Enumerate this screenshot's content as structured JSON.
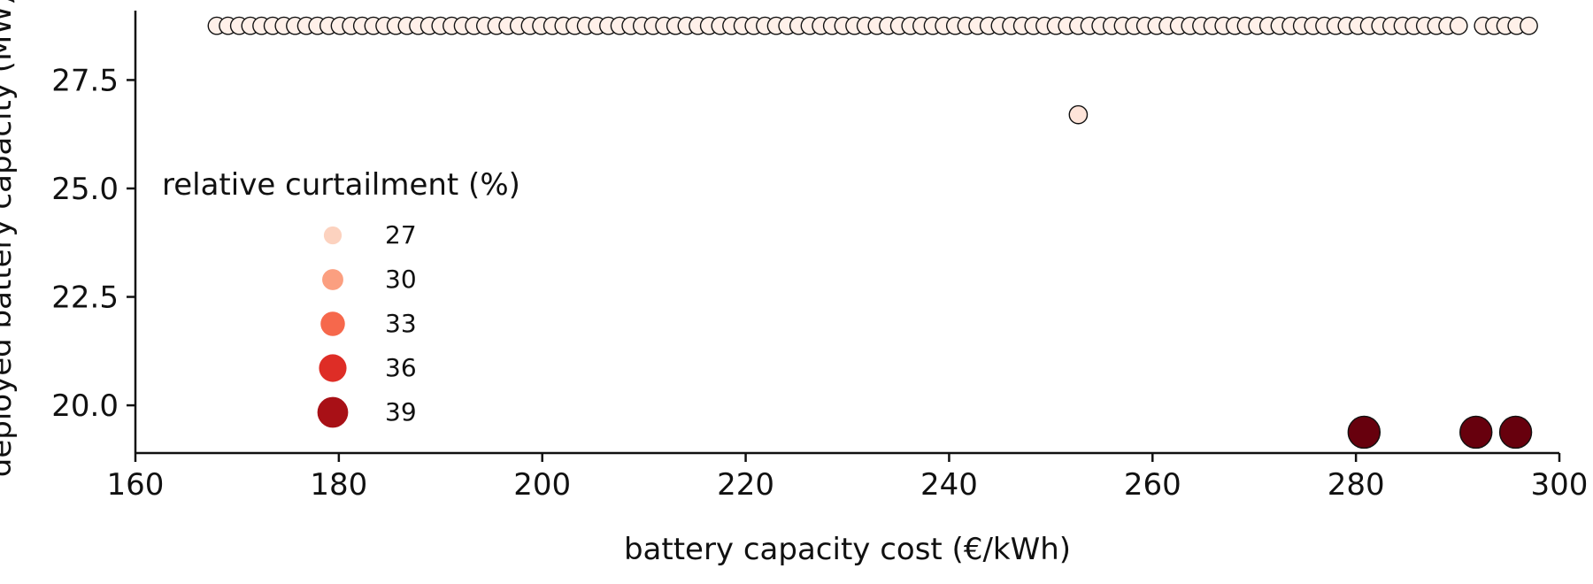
{
  "chart_data": {
    "type": "scatter",
    "xlabel": "battery capacity cost (€/kWh)",
    "ylabel": "deployed battery capacity (MW)",
    "xlim": [
      160,
      300
    ],
    "ylim": [
      18.9,
      29.1
    ],
    "x_ticks": [
      160,
      180,
      200,
      220,
      240,
      260,
      280,
      300
    ],
    "x_tick_labels": [
      "160",
      "180",
      "200",
      "220",
      "240",
      "260",
      "280",
      "300"
    ],
    "y_ticks": [
      20.0,
      22.5,
      25.0,
      27.5
    ],
    "y_tick_labels": [
      "20.0",
      "22.5",
      "25.0",
      "27.5"
    ],
    "grid": false,
    "legend": {
      "title": "relative curtailment (%)",
      "placement": "center-left",
      "entries": [
        {
          "label": "27",
          "value": 27,
          "color": "#fcd2bf"
        },
        {
          "label": "30",
          "value": 30,
          "color": "#fb9f80"
        },
        {
          "label": "33",
          "value": 33,
          "color": "#f6684c"
        },
        {
          "label": "36",
          "value": 36,
          "color": "#de2d26"
        },
        {
          "label": "39",
          "value": 39,
          "color": "#a81016"
        }
      ]
    },
    "hue_range": [
      26,
      40
    ],
    "color_scale": [
      "#fff5f0",
      "#fcbba1",
      "#fb6a4a",
      "#cb181d",
      "#67000d"
    ],
    "series": [
      {
        "y": 28.75,
        "curtailment": 26.3,
        "x": [
          168.0,
          169.1,
          170.2,
          171.3,
          172.4,
          173.5,
          174.6,
          175.7,
          176.8,
          177.9,
          179.0,
          180.1,
          181.2,
          182.3,
          183.4,
          184.5,
          185.6,
          186.7,
          187.8,
          188.9,
          190.0,
          191.1,
          192.2,
          193.3,
          194.4,
          195.5,
          196.6,
          197.7,
          198.8,
          199.9,
          201.0,
          202.1,
          203.2,
          204.3,
          205.4,
          206.5,
          207.6,
          208.7,
          209.8,
          210.9,
          212.0,
          213.1,
          214.2,
          215.3,
          216.4,
          217.5,
          218.6,
          219.7,
          220.8,
          221.9,
          223.0,
          224.1,
          225.2,
          226.3,
          227.4,
          228.5,
          229.6,
          230.7,
          231.8,
          232.9,
          234.0,
          235.1,
          236.2,
          237.3,
          238.4,
          239.5,
          240.6,
          241.7,
          242.8,
          243.9,
          245.0,
          246.1,
          247.2,
          248.3,
          249.4,
          250.5,
          251.6,
          252.7,
          253.8,
          254.9,
          256.0,
          257.1,
          258.2,
          259.3,
          260.4,
          261.5,
          262.6,
          263.7,
          264.8,
          265.9,
          267.0,
          268.1,
          269.2,
          270.3,
          271.4,
          272.5,
          273.6,
          274.7,
          275.8,
          276.9,
          278.0,
          279.1,
          280.2,
          281.3,
          282.4,
          283.5,
          284.6,
          285.7,
          286.8,
          287.9,
          289.0,
          290.1,
          292.5,
          293.6,
          294.7,
          295.8,
          297.0
        ]
      },
      {
        "y": 26.7,
        "curtailment": 27.0,
        "x": [
          252.7
        ]
      },
      {
        "y": 19.38,
        "curtailment": 40.0,
        "x": [
          280.8,
          291.8,
          295.7
        ]
      }
    ]
  }
}
